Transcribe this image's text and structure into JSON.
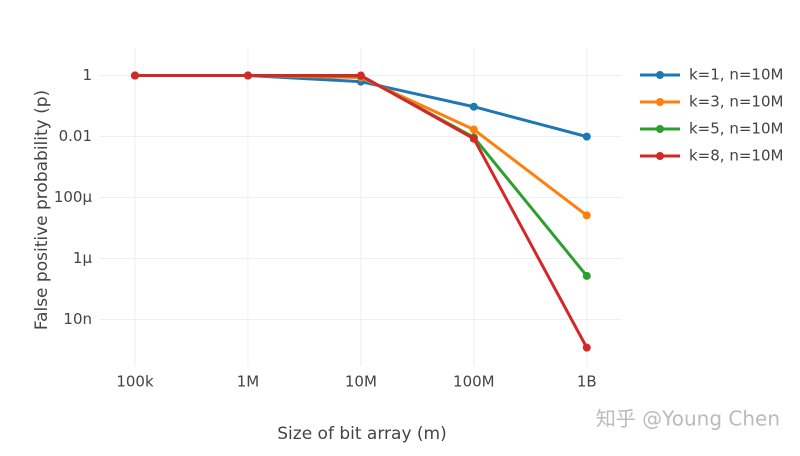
{
  "chart_data": {
    "type": "line",
    "x_label": "Size of bit array (m)",
    "y_label": "False positive probability (p)",
    "x": [
      100000,
      1000000,
      10000000,
      100000000,
      1000000000
    ],
    "series": [
      {
        "name": "k=1, n=10M",
        "color": "#1f77b4",
        "values": [
          1,
          1,
          0.63,
          0.095,
          0.00995
        ]
      },
      {
        "name": "k=3, n=10M",
        "color": "#ff7f0e",
        "values": [
          1,
          1,
          0.86,
          0.017,
          2.6e-05
        ]
      },
      {
        "name": "k=5, n=10M",
        "color": "#2ca02c",
        "values": [
          1,
          1,
          0.97,
          0.0094,
          2.7e-07
        ]
      },
      {
        "name": "k=8, n=10M",
        "color": "#d62728",
        "values": [
          1,
          1,
          1,
          0.0085,
          1.2e-09
        ]
      }
    ],
    "xlog": true,
    "ylog": true,
    "xlim": [
      49000,
      2050000000
    ],
    "ylim": [
      3e-10,
      8
    ],
    "xticks": [
      {
        "value": 100000,
        "label": "100k"
      },
      {
        "value": 1000000,
        "label": "1M"
      },
      {
        "value": 10000000,
        "label": "10M"
      },
      {
        "value": 100000000,
        "label": "100M"
      },
      {
        "value": 1000000000,
        "label": "1B"
      }
    ],
    "yticks": [
      1,
      0.01,
      {
        "value": 0.0001,
        "label": "100μ"
      },
      {
        "value": 1e-06,
        "label": "1μ"
      },
      {
        "value": 1e-08,
        "label": "10n"
      }
    ],
    "grid": true,
    "legend": "right",
    "watermark": "知乎 @Young Chen"
  }
}
